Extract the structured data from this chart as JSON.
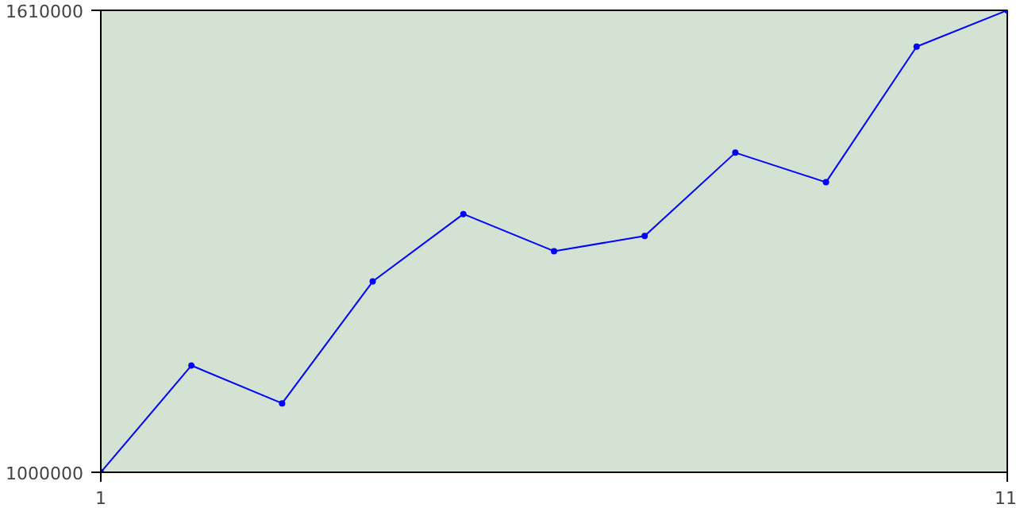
{
  "chart_data": {
    "type": "line",
    "x": [
      1,
      2,
      3,
      4,
      5,
      6,
      7,
      8,
      9,
      10,
      11
    ],
    "series": [
      {
        "color": "#0000ff",
        "values": [
          1000000,
          1141000,
          1091000,
          1252000,
          1341000,
          1292000,
          1312000,
          1422000,
          1383000,
          1562000,
          1610000
        ]
      }
    ],
    "xlim": [
      1,
      11
    ],
    "xticks": [
      1,
      11
    ],
    "ylim": [
      1000000,
      1610000
    ],
    "yticks": [
      1000000,
      1610000
    ],
    "marker": "circle",
    "line_style": "solid"
  }
}
